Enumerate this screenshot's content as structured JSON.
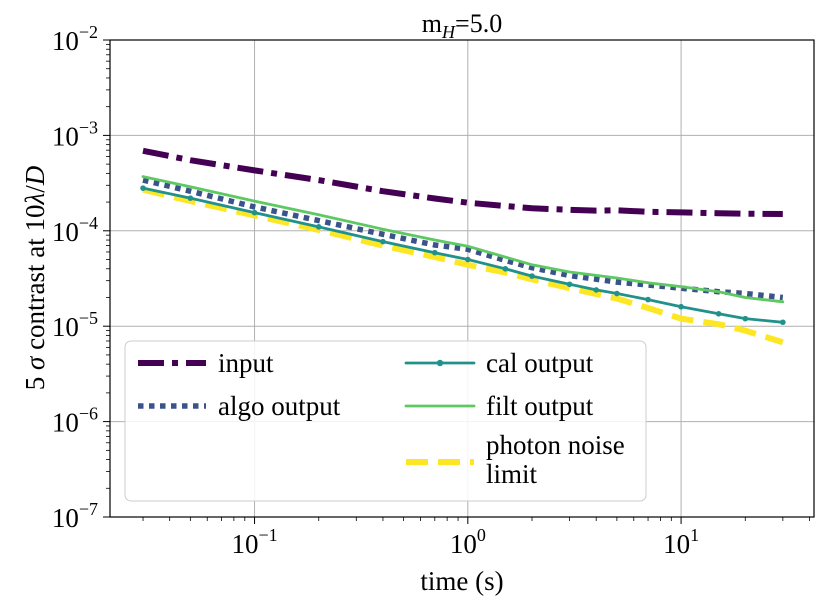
{
  "chart_data": {
    "type": "line",
    "title": "m",
    "title_sub": "H",
    "title_value": "=5.0",
    "xlabel": "time (s)",
    "ylabel": "5 σ contrast at 10λ/D",
    "ylabel_parts": {
      "a": "5 ",
      "sigma": "σ",
      "b": " contrast at 10",
      "lambda": "λ",
      "c": "/",
      "d": "D"
    },
    "xscale": "log",
    "yscale": "log",
    "xlim": [
      0.021,
      42
    ],
    "ylim": [
      1e-07,
      0.01
    ],
    "grid": true,
    "legend_location": "lower-left",
    "x_ticks": [
      {
        "value": 0.1,
        "base": "10",
        "exp": "−1"
      },
      {
        "value": 1,
        "base": "10",
        "exp": "0"
      },
      {
        "value": 10,
        "base": "10",
        "exp": "1"
      }
    ],
    "y_ticks": [
      {
        "value": 1e-07,
        "base": "10",
        "exp": "−7"
      },
      {
        "value": 1e-06,
        "base": "10",
        "exp": "−6"
      },
      {
        "value": 1e-05,
        "base": "10",
        "exp": "−5"
      },
      {
        "value": 0.0001,
        "base": "10",
        "exp": "−4"
      },
      {
        "value": 0.001,
        "base": "10",
        "exp": "−3"
      },
      {
        "value": 0.01,
        "base": "10",
        "exp": "−2"
      }
    ],
    "series": [
      {
        "name": "input",
        "color": "#440154",
        "style": "dashdot",
        "x": [
          0.03,
          0.05,
          0.1,
          0.2,
          0.4,
          0.7,
          1.0,
          1.5,
          2.0,
          3.0,
          4.0,
          5.0,
          7.0,
          10.0,
          15.0,
          20.0,
          30.0
        ],
        "y": [
          0.00069,
          0.00055,
          0.00043,
          0.00034,
          0.00026,
          0.000218,
          0.000197,
          0.000182,
          0.000172,
          0.000166,
          0.000163,
          0.000164,
          0.000158,
          0.000156,
          0.000153,
          0.000151,
          0.00015
        ]
      },
      {
        "name": "algo output",
        "color": "#3b528b",
        "style": "dotted",
        "x": [
          0.03,
          0.05,
          0.1,
          0.2,
          0.4,
          0.7,
          1.0,
          1.5,
          2.0,
          3.0,
          5.0,
          7.0,
          10.0,
          15.0,
          20.0,
          30.0
        ],
        "y": [
          0.00034,
          0.00026,
          0.000178,
          0.000128,
          9.2e-05,
          7.1e-05,
          6.4e-05,
          4.9e-05,
          4.1e-05,
          3.4e-05,
          2.9e-05,
          2.7e-05,
          2.5e-05,
          2.3e-05,
          2.2e-05,
          2e-05
        ]
      },
      {
        "name": "cal output",
        "color": "#21918c",
        "style": "solid-marker",
        "x": [
          0.03,
          0.05,
          0.1,
          0.2,
          0.4,
          0.7,
          1.0,
          1.5,
          2.0,
          3.0,
          4.0,
          5.0,
          7.0,
          10.0,
          15.0,
          20.0,
          30.0
        ],
        "y": [
          0.00028,
          0.00022,
          0.000155,
          0.00011,
          7.7e-05,
          5.9e-05,
          5e-05,
          4e-05,
          3.35e-05,
          2.75e-05,
          2.4e-05,
          2.2e-05,
          1.9e-05,
          1.6e-05,
          1.35e-05,
          1.2e-05,
          1.1e-05
        ]
      },
      {
        "name": "filt output",
        "color": "#5ec962",
        "style": "solid",
        "x": [
          0.03,
          0.05,
          0.1,
          0.2,
          0.4,
          0.7,
          1.0,
          1.5,
          2.0,
          3.0,
          5.0,
          7.0,
          10.0,
          15.0,
          20.0,
          30.0
        ],
        "y": [
          0.00037,
          0.00029,
          0.000205,
          0.000147,
          0.000104,
          8e-05,
          6.9e-05,
          5.3e-05,
          4.4e-05,
          3.7e-05,
          3.2e-05,
          2.85e-05,
          2.6e-05,
          2.3e-05,
          2e-05,
          1.8e-05
        ]
      },
      {
        "name": "photon noise limit",
        "legend_lines": [
          "photon noise",
          "limit"
        ],
        "color": "#fde725",
        "style": "dashed",
        "x": [
          0.03,
          0.05,
          0.1,
          0.2,
          0.4,
          0.7,
          1.0,
          1.5,
          2.0,
          3.0,
          5.0,
          7.0,
          10.0,
          15.0,
          20.0,
          30.0
        ],
        "y": [
          0.00027,
          0.000205,
          0.000145,
          0.000102,
          7e-05,
          5.3e-05,
          4.4e-05,
          3.65e-05,
          3.1e-05,
          2.5e-05,
          1.95e-05,
          1.55e-05,
          1.2e-05,
          1.05e-05,
          9e-06,
          6.8e-06
        ]
      }
    ]
  }
}
